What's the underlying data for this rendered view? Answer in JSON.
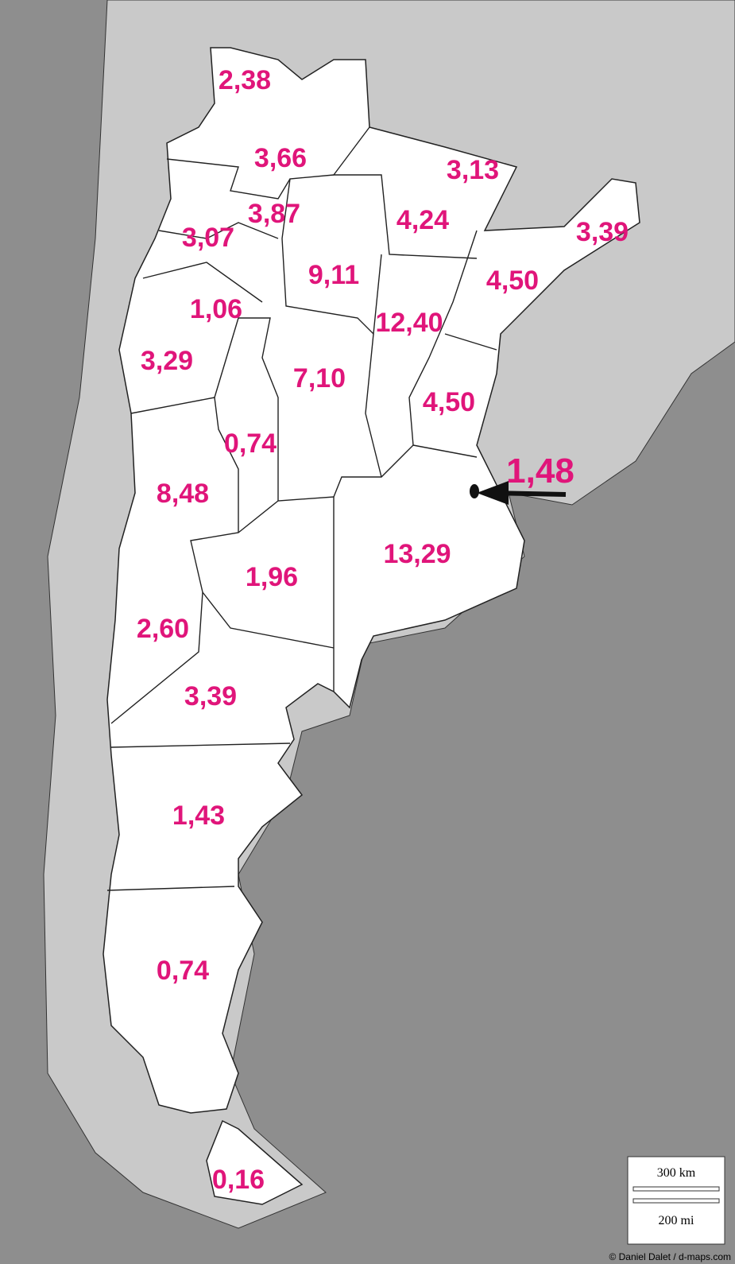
{
  "labels": [
    "2,38",
    "3,66",
    "3,13",
    "3,87",
    "4,24",
    "3,39",
    "3,07",
    "9,11",
    "4,50",
    "1,06",
    "12,40",
    "3,29",
    "7,10",
    "4,50",
    "0,74",
    "1,48",
    "8,48",
    "13,29",
    "1,96",
    "2,60",
    "3,39",
    "1,43",
    "0,74",
    "0,16"
  ],
  "scale": {
    "km": "300 km",
    "mi": "200 mi"
  },
  "credit": "© Daniel Dalet / d-maps.com"
}
